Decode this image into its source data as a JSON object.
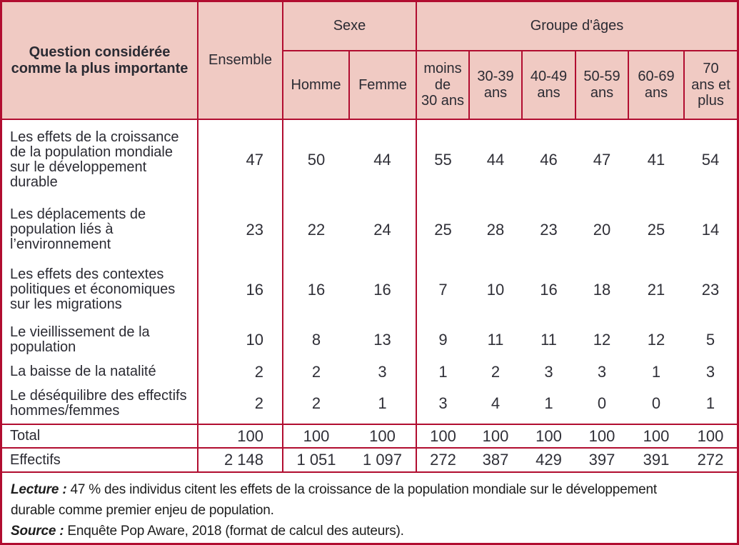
{
  "colors": {
    "header_bg": "#f0cac3",
    "border": "#b10d30",
    "header_text": "#2b2b33",
    "body_text": "#2f2f37"
  },
  "chart_data": {
    "type": "table",
    "header": {
      "question": "Question considérée\ncomme la plus importante",
      "ensemble": "Ensemble",
      "sexe": "Sexe",
      "age_group": "Groupe d'âges",
      "sexe_cols": [
        "Homme",
        "Femme"
      ],
      "age_cols": [
        "moins\nde\n30 ans",
        "30-39\nans",
        "40-49\nans",
        "50-59\nans",
        "60-69\nans",
        "70\nans et\nplus"
      ]
    },
    "columns_flat": [
      "Question considérée comme la plus importante",
      "Ensemble",
      "Homme",
      "Femme",
      "moins de 30 ans",
      "30-39 ans",
      "40-49 ans",
      "50-59 ans",
      "60-69 ans",
      "70 ans et plus"
    ],
    "rows": [
      {
        "label": "Les effets de la croissance de la population mondiale sur le développement durable",
        "values": [
          "47",
          "50",
          "44",
          "55",
          "44",
          "46",
          "47",
          "41",
          "54"
        ]
      },
      {
        "label": "Les déplacements de population liés à l’environnement",
        "values": [
          "23",
          "22",
          "24",
          "25",
          "28",
          "23",
          "20",
          "25",
          "14"
        ]
      },
      {
        "label": "Les effets des contextes politiques et économiques sur les migrations",
        "values": [
          "16",
          "16",
          "16",
          "7",
          "10",
          "16",
          "18",
          "21",
          "23"
        ]
      },
      {
        "label": "Le vieillissement de la population",
        "values": [
          "10",
          "8",
          "13",
          "9",
          "11",
          "11",
          "12",
          "12",
          "5"
        ]
      },
      {
        "label": "La baisse de la natalité",
        "values": [
          "2",
          "2",
          "3",
          "1",
          "2",
          "3",
          "3",
          "1",
          "3"
        ]
      },
      {
        "label": "Le déséquilibre des effectifs hommes/femmes",
        "values": [
          "2",
          "2",
          "1",
          "3",
          "4",
          "1",
          "0",
          "0",
          "1"
        ]
      }
    ],
    "total_row": {
      "label": "Total",
      "values": [
        "100",
        "100",
        "100",
        "100",
        "100",
        "100",
        "100",
        "100",
        "100"
      ]
    },
    "effectifs_row": {
      "label": "Effectifs",
      "values": [
        "2 148",
        "1 051",
        "1 097",
        "272",
        "387",
        "429",
        "397",
        "391",
        "272"
      ]
    }
  },
  "notes": {
    "lecture_label": "Lecture :",
    "lecture_text": "47 % des individus citent les effets de la croissance de la population mondiale sur le développement\ndurable comme premier enjeu de population.",
    "source_label": "Source :",
    "source_text": "Enquête Pop Aware, 2018 (format de calcul des auteurs)."
  }
}
